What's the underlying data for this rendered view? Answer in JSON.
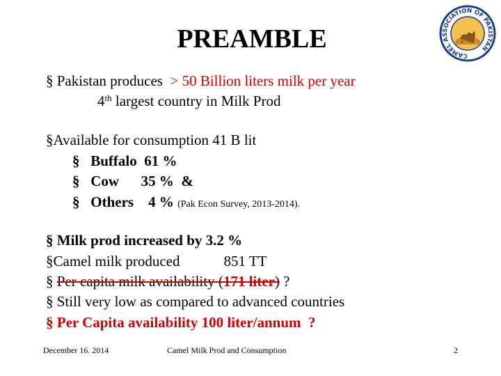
{
  "header": {
    "title": "PREAMBLE",
    "logo_text": "CAMEL ASSOCIATION OF PAKISTAN"
  },
  "body": {
    "production": {
      "bullet": "§",
      "lead": "Pakistan produces",
      "highlight": "> 50 Billion liters milk per year",
      "rank": "4",
      "rank_suffix": "th",
      "rank_rest": "largest country in Milk Prod"
    },
    "availability": {
      "bullet": "§",
      "text": "Available for consumption 41 B lit",
      "items": [
        {
          "bullet": "§",
          "text": "Buffalo  61 %"
        },
        {
          "bullet": "§",
          "text": "Cow      35 %  &"
        },
        {
          "bullet": "§",
          "text": "Others    4 %",
          "source": "(Pak Econ Survey, 2013-2014)."
        }
      ]
    },
    "facts": [
      {
        "bullet": "§",
        "text": "Milk prod increased by 3.2 %"
      },
      {
        "bullet": "§",
        "text": "Camel milk produced            851 TT"
      },
      {
        "bullet": "§",
        "text": "Per capita milk availability (",
        "highlight": "171 liter",
        "after": ")",
        "tail": " ?"
      },
      {
        "bullet": "§",
        "text": "Still very low as compared to advanced countries"
      },
      {
        "bullet": "§",
        "text": "Per Capita availability 100 liter/annum  ?"
      }
    ]
  },
  "footer": {
    "date": "December 16. 2014",
    "title": "Camel Milk Prod and Consumption",
    "page": "2"
  }
}
